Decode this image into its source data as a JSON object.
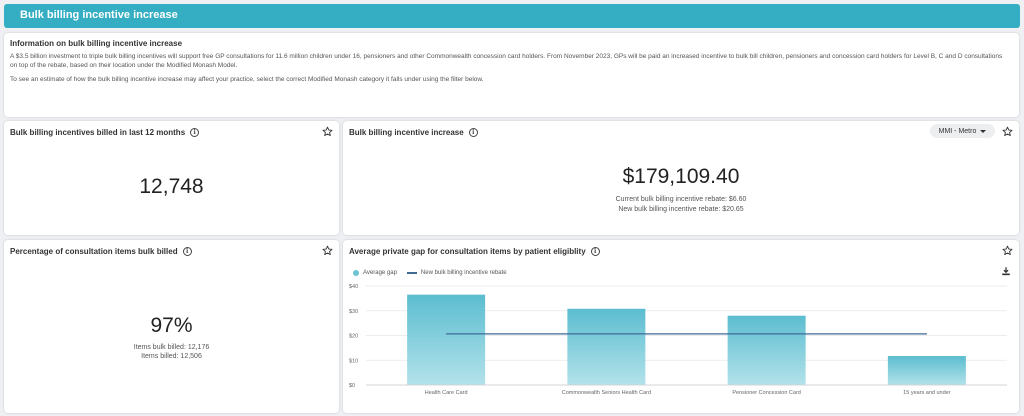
{
  "banner": {
    "title": "Bulk billing incentive increase"
  },
  "info": {
    "title": "Information on bulk billing incentive increase",
    "paragraph1": "A $3.5 billion investment to triple bulk billing incentives will support free GP consultations for 11.6 million children under 16, pensioners and other Commonwealth concession card holders. From November 2023, GPs will be paid an increased incentive to bulk bill children, pensioners and concession card holders for Level B, C and D consultations on top of the rebate, based on their location under the Modified Monash Model.",
    "paragraph2": "To see an estimate of how the bulk billing incentive increase may affect your practice, select the correct Modified Monash category it falls under using the filter below."
  },
  "billed_card": {
    "title": "Bulk billing incentives billed in last 12 months",
    "value": "12,748"
  },
  "increase_card": {
    "title": "Bulk billing incentive increase",
    "dropdown": "MMI - Metro",
    "value": "$179,109.40",
    "current_rebate": "Current bulk billing incentive rebate: $6.60",
    "new_rebate": "New bulk billing incentive rebate: $20.65"
  },
  "percent_card": {
    "title": "Percentage of consultation items bulk billed",
    "value": "97%",
    "items_bulk_billed": "Items bulk billed: 12,176",
    "items_billed": "Items billed: 12,506"
  },
  "gap_card": {
    "title": "Average private gap for consultation items by patient eligiblity",
    "legend_bar": "Average gap",
    "legend_line": "New bulk billing incentive rebate"
  },
  "colors": {
    "banner": "#35aec3",
    "bar_top": "#5bbdd0",
    "bar_bottom": "#b3e2ea",
    "line": "#3f6a96"
  },
  "chart_data": {
    "type": "bar",
    "categories": [
      "Health Care Card",
      "Commonwealth Seniors Health Card",
      "Pensioner Concession Card",
      "15 years and under"
    ],
    "series": [
      {
        "name": "Average gap",
        "values": [
          36.5,
          30.8,
          28.0,
          11.7
        ]
      },
      {
        "name": "New bulk billing incentive rebate",
        "type": "line",
        "values": [
          20.65,
          20.65,
          20.65,
          20.65
        ]
      }
    ],
    "yticks": [
      "$0",
      "$10",
      "$20",
      "$30",
      "$40"
    ],
    "ylim": [
      0,
      40
    ]
  }
}
